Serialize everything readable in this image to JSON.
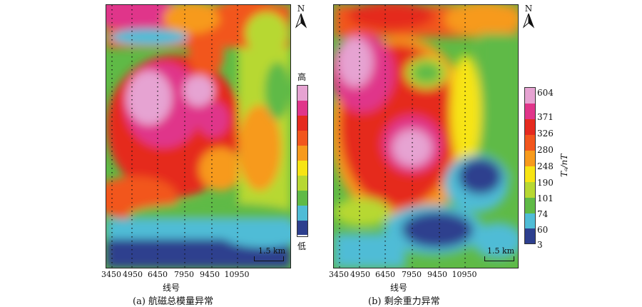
{
  "panel_a": {
    "caption": "(a)  航磁总模量异常",
    "x_ticks": [
      "3450",
      "4950",
      "6450",
      "7950",
      "9450",
      "10950"
    ],
    "xlabel": "线号",
    "north_label": "N",
    "scale_label": "1.5 km",
    "legend_high": "高",
    "legend_low": "低"
  },
  "panel_b": {
    "caption": "(b)  剩余重力异常",
    "x_ticks": [
      "3450",
      "4950",
      "6450",
      "7950",
      "9450",
      "10950"
    ],
    "xlabel": "线号",
    "north_label": "N",
    "scale_label": "1.5 km",
    "legend_values": [
      "604",
      "371",
      "326",
      "280",
      "248",
      "190",
      "101",
      "74",
      "60",
      "3"
    ],
    "legend_unit": "Tₐ/nT"
  },
  "colors": {
    "pink": "#e6a3d2",
    "magenta": "#e0358a",
    "red": "#e52a1f",
    "orange_red": "#f2561d",
    "orange": "#f79a1c",
    "yellow": "#f7e413",
    "yellow_green": "#b7d832",
    "green": "#5fba46",
    "cyan": "#4fbcd6",
    "navy": "#2d3f8e"
  }
}
